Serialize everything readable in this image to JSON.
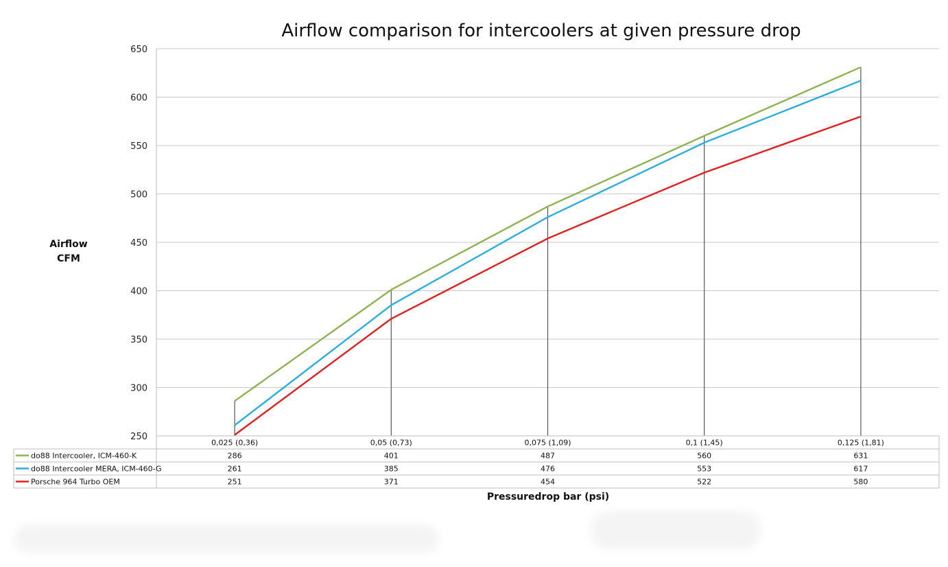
{
  "chart_data": {
    "type": "line",
    "title": "Airflow comparison for intercoolers at given pressure drop",
    "ylabel_line1": "Airflow",
    "ylabel_line2": "CFM",
    "xlabel": "Pressuredrop bar (psi)",
    "ylim": [
      250,
      650
    ],
    "yticks": [
      250,
      300,
      350,
      400,
      450,
      500,
      550,
      600,
      650
    ],
    "categories": [
      "0,025 (0,36)",
      "0,05 (0,73)",
      "0,075 (1,09)",
      "0,1 (1,45)",
      "0,125 (1,81)"
    ],
    "series": [
      {
        "name": "do88 Intercooler, ICM-460-K",
        "color": "#8db350",
        "values": [
          286,
          401,
          487,
          560,
          631
        ]
      },
      {
        "name": "do88 Intercooler MERA, ICM-460-G",
        "color": "#29aee0",
        "values": [
          261,
          385,
          476,
          553,
          617
        ]
      },
      {
        "name": "Porsche 964 Turbo OEM",
        "color": "#e41e1e",
        "values": [
          251,
          371,
          454,
          522,
          580
        ]
      }
    ],
    "grid": true,
    "data_table": true
  }
}
